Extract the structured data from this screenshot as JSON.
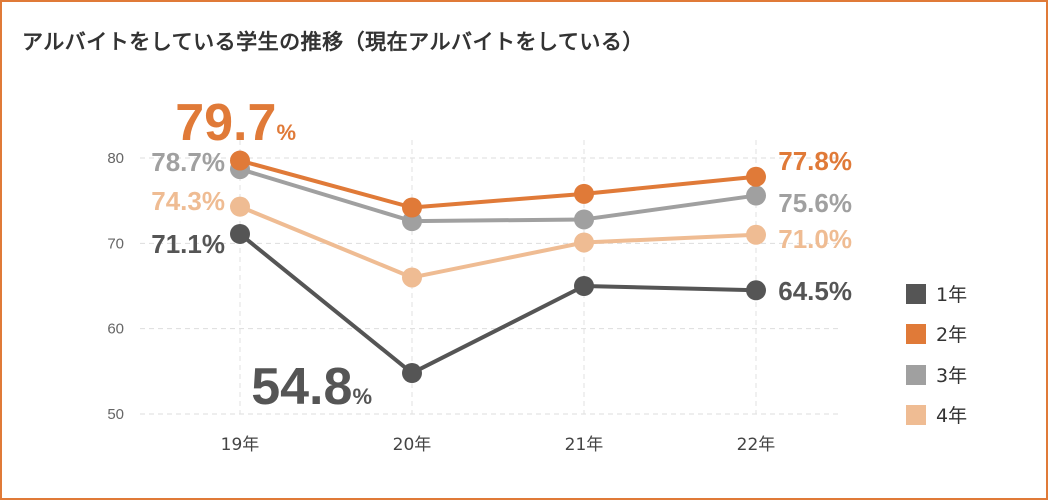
{
  "title": "アルバイトをしている学生の推移（現在アルバイトをしている）",
  "chart_data": {
    "type": "line",
    "categories": [
      "19年",
      "20年",
      "21年",
      "22年"
    ],
    "ylim": [
      50,
      80
    ],
    "yticks": [
      50,
      60,
      70,
      80
    ],
    "ytick_labels": [
      "50",
      "60",
      "70",
      "80"
    ],
    "grid": true,
    "legend_position": "right",
    "series": [
      {
        "name": "1年",
        "color": "#555555",
        "values": [
          71.1,
          54.8,
          65.0,
          64.5
        ]
      },
      {
        "name": "2年",
        "color": "#E07A38",
        "values": [
          79.7,
          74.2,
          75.8,
          77.8
        ]
      },
      {
        "name": "3年",
        "color": "#A0A0A0",
        "values": [
          78.7,
          72.6,
          72.8,
          75.6
        ]
      },
      {
        "name": "4年",
        "color": "#EFBC93",
        "values": [
          74.3,
          66.0,
          70.1,
          71.0
        ]
      }
    ],
    "data_labels": [
      {
        "series": 0,
        "index": 0,
        "text": "71.1%",
        "unit": ""
      },
      {
        "series": 0,
        "index": 1,
        "text": "54.8",
        "unit": "%"
      },
      {
        "series": 0,
        "index": 3,
        "text": "64.5%",
        "unit": ""
      },
      {
        "series": 1,
        "index": 0,
        "text": "79.7",
        "unit": "%"
      },
      {
        "series": 1,
        "index": 3,
        "text": "77.8%",
        "unit": ""
      },
      {
        "series": 2,
        "index": 0,
        "text": "78.7%",
        "unit": ""
      },
      {
        "series": 2,
        "index": 3,
        "text": "75.6%",
        "unit": ""
      },
      {
        "series": 3,
        "index": 0,
        "text": "74.3%",
        "unit": ""
      },
      {
        "series": 3,
        "index": 3,
        "text": "71.0%",
        "unit": ""
      }
    ]
  }
}
